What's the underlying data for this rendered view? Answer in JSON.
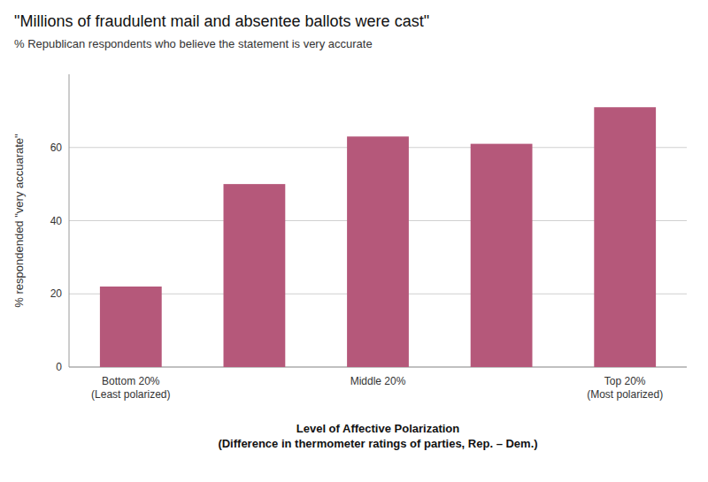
{
  "chart_data": {
    "type": "bar",
    "title": "\"Millions of fraudulent mail and absentee ballots were cast\"",
    "subtitle": "% Republican respondents who believe the statement is very accurate",
    "xlabel": "Level of Affective Polarization\n(Difference in thermometer ratings of parties, Rep. – Dem.)",
    "ylabel": "% respondended \"very accuarate\"",
    "categories": [
      "Bottom 20%\n(Least polarized)",
      null,
      "Middle 20%",
      null,
      "Top 20%\n(Most polarized)"
    ],
    "values": [
      22,
      50,
      63,
      61,
      71
    ],
    "color": "#b5587a",
    "ylim": [
      0,
      80
    ],
    "yticks": [
      0,
      20,
      40,
      60
    ],
    "grid": true
  }
}
